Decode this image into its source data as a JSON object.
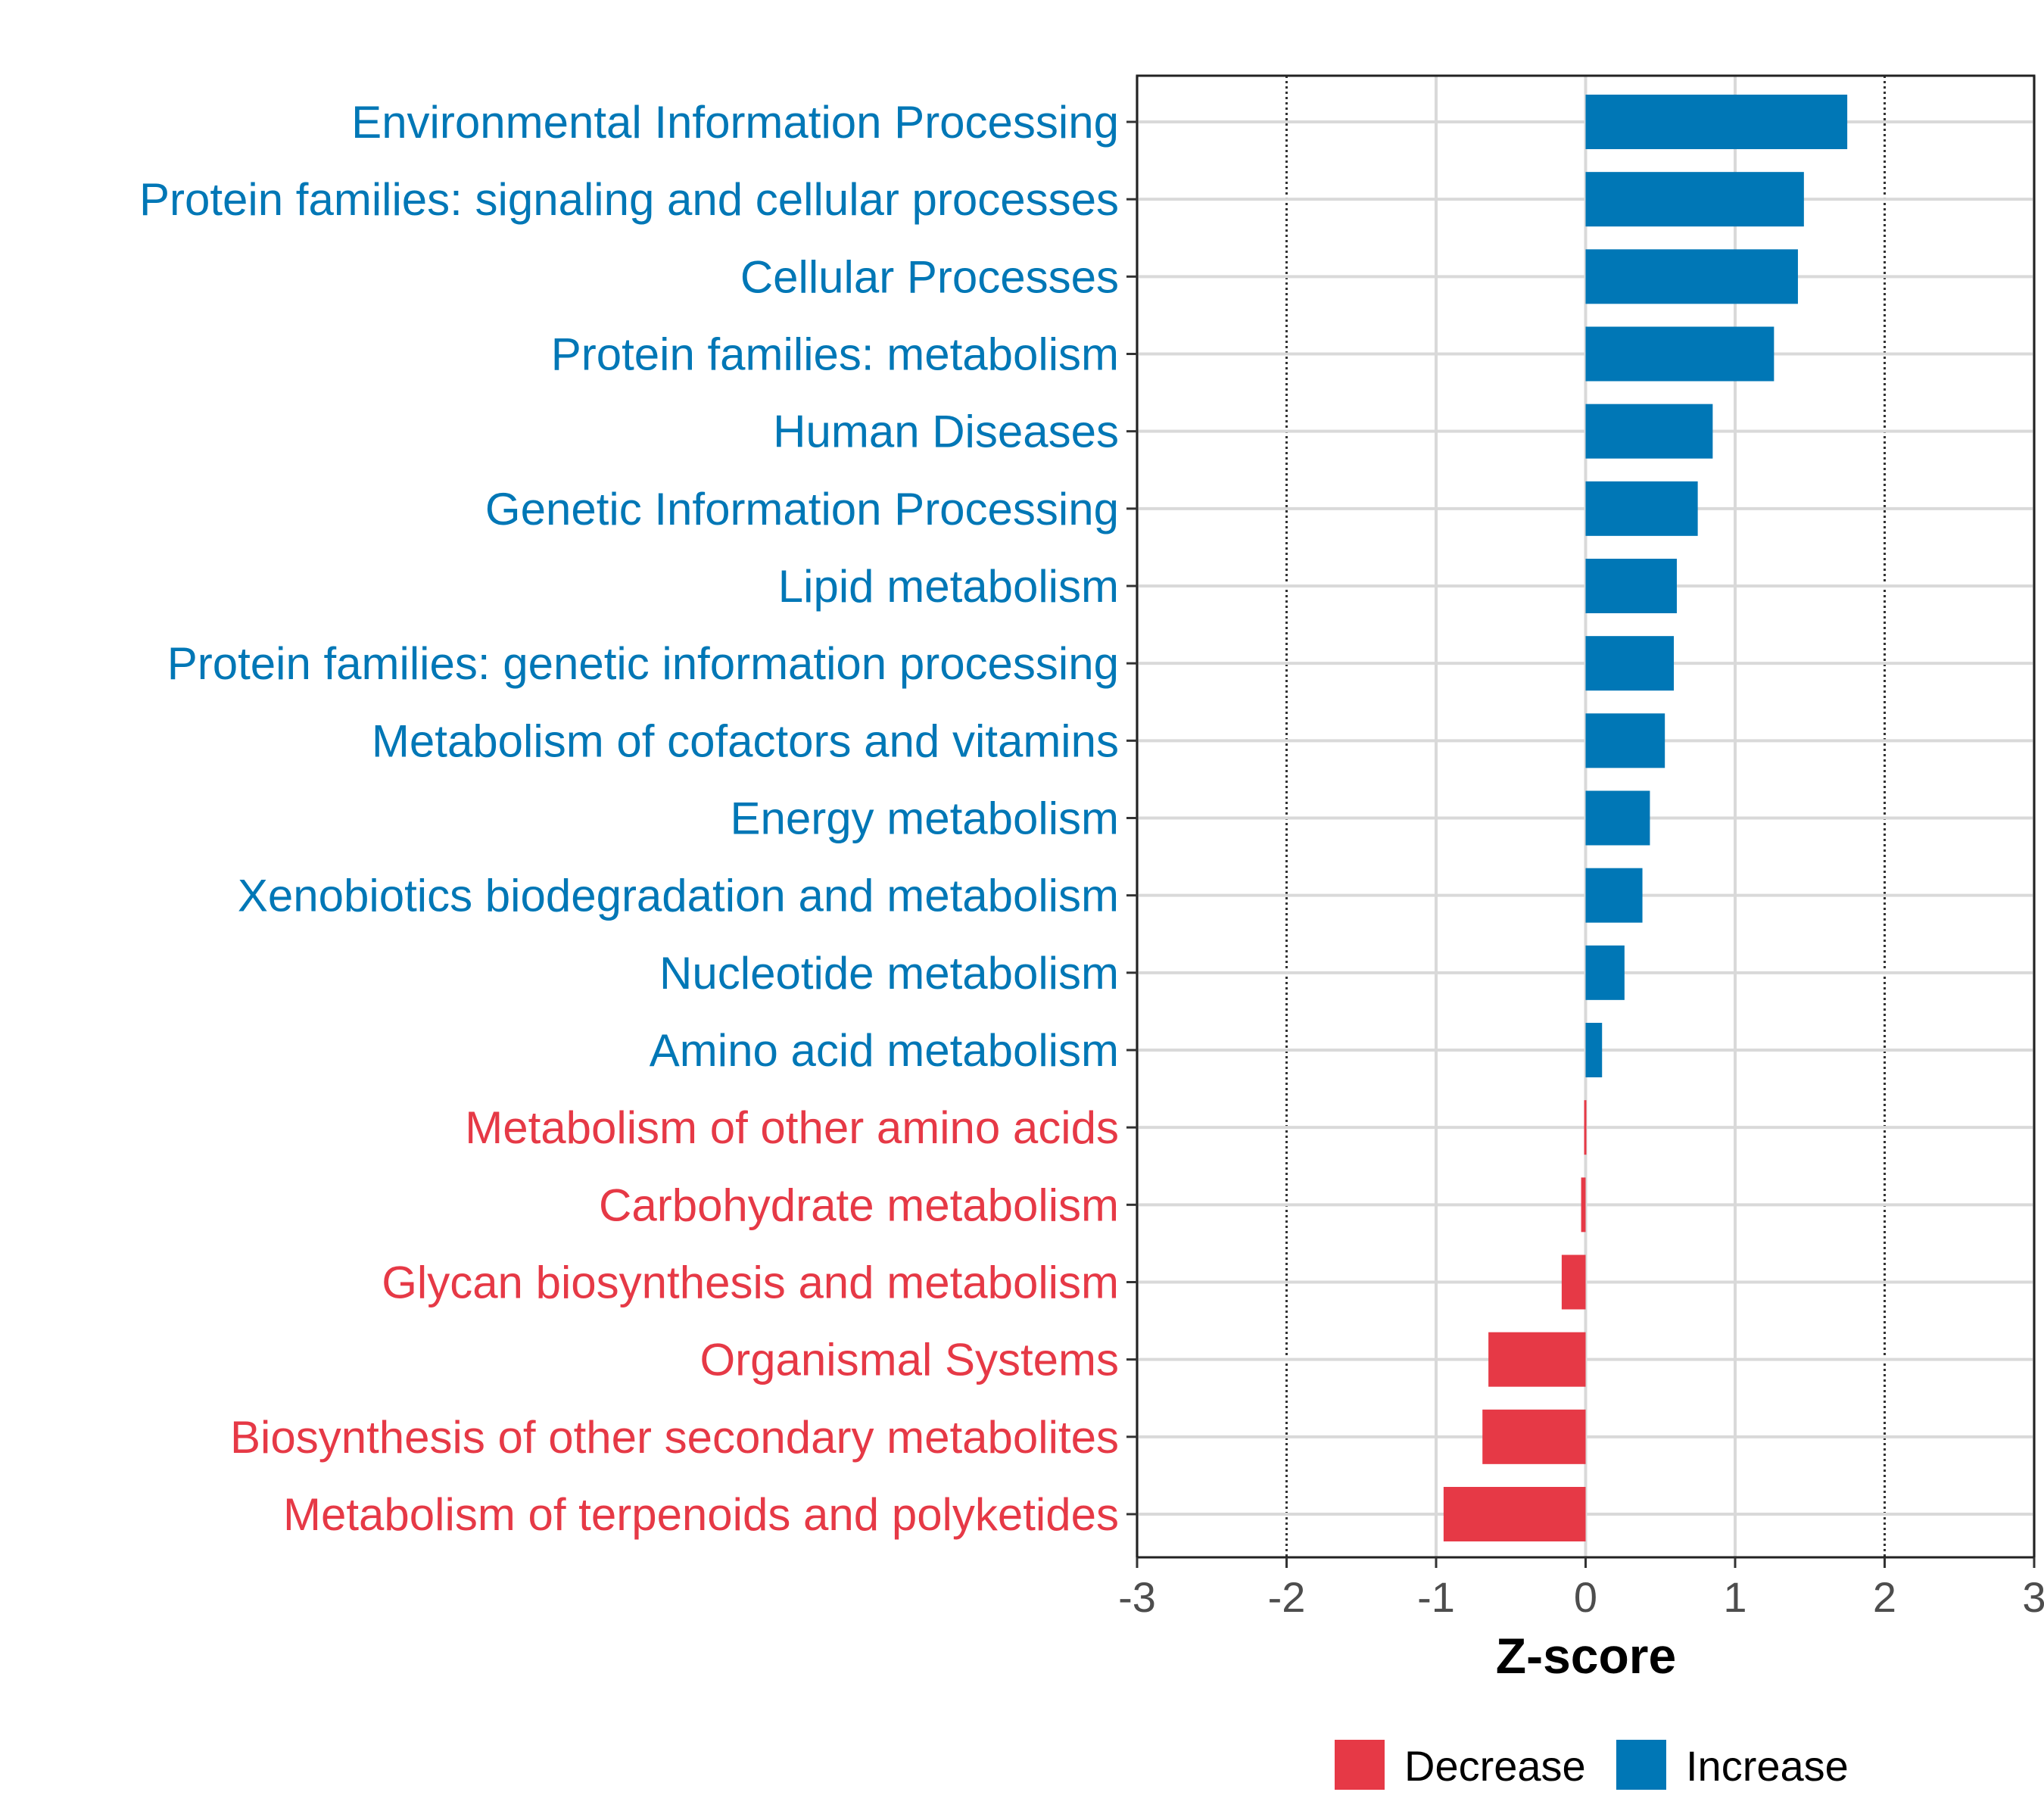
{
  "chart_data": {
    "type": "bar",
    "orientation": "horizontal",
    "xlabel": "Z-score",
    "xlim": [
      -3,
      3
    ],
    "xticks": [
      -3,
      -2,
      -1,
      0,
      1,
      2,
      3
    ],
    "reference_lines": [
      -2,
      2
    ],
    "grid": true,
    "legend_position": "bottom",
    "colors": {
      "Decrease": "#E63946",
      "Increase": "#0077B6"
    },
    "legend": [
      {
        "label": "Decrease",
        "color": "#E63946"
      },
      {
        "label": "Increase",
        "color": "#0077B6"
      }
    ],
    "categories": [
      "Environmental Information Processing",
      "Protein families: signaling and cellular processes",
      "Cellular Processes",
      "Protein families: metabolism",
      "Human Diseases",
      "Genetic Information Processing",
      "Lipid metabolism",
      "Protein families: genetic information processing",
      "Metabolism of cofactors and vitamins",
      "Energy metabolism",
      "Xenobiotics biodegradation and metabolism",
      "Nucleotide metabolism",
      "Amino acid metabolism",
      "Metabolism of other amino acids",
      "Carbohydrate metabolism",
      "Glycan biosynthesis and metabolism",
      "Organismal Systems",
      "Biosynthesis of other secondary metabolites",
      "Metabolism of terpenoids and polyketides"
    ],
    "values": [
      1.75,
      1.46,
      1.42,
      1.26,
      0.85,
      0.75,
      0.61,
      0.59,
      0.53,
      0.43,
      0.38,
      0.26,
      0.11,
      -0.01,
      -0.03,
      -0.16,
      -0.65,
      -0.69,
      -0.95
    ]
  }
}
